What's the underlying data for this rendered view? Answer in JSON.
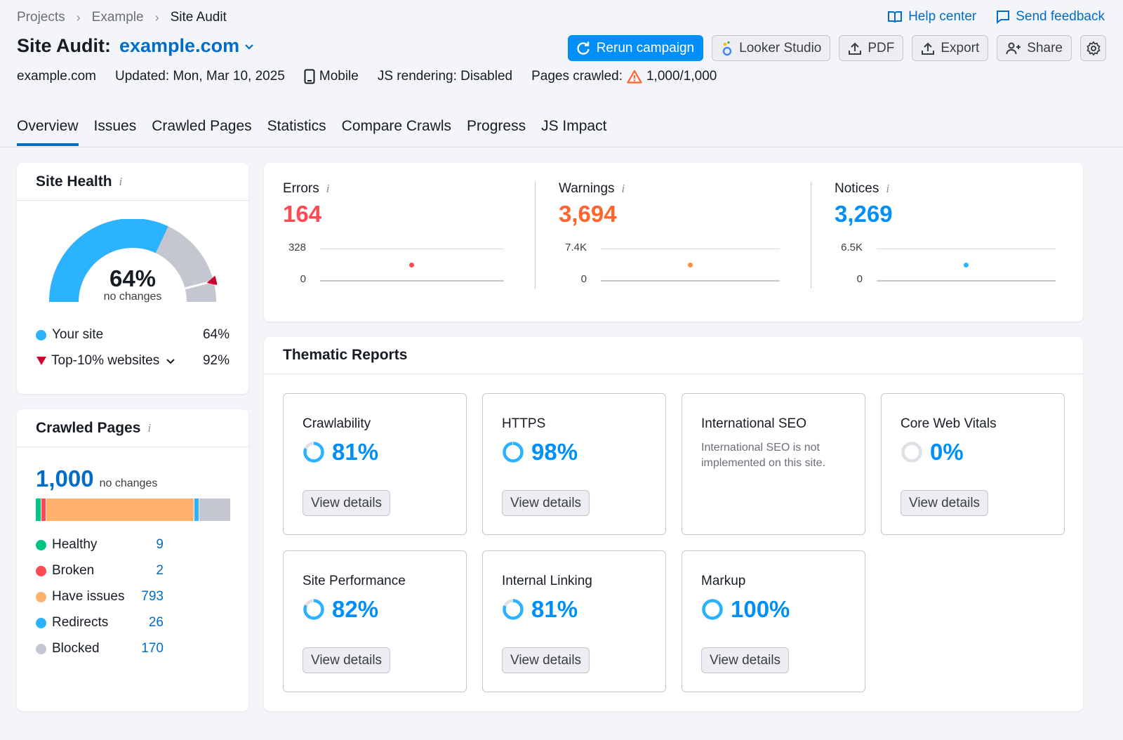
{
  "breadcrumb": {
    "items": [
      "Projects",
      "Example"
    ],
    "current": "Site Audit"
  },
  "toplinks": {
    "help": "Help center",
    "feedback": "Send feedback"
  },
  "title": {
    "label": "Site Audit:",
    "domain": "example.com"
  },
  "actions": {
    "rerun": "Rerun campaign",
    "looker": "Looker Studio",
    "pdf": "PDF",
    "export": "Export",
    "share": "Share"
  },
  "meta": {
    "domain": "example.com",
    "updated": "Updated: Mon, Mar 10, 2025",
    "device": "Mobile",
    "js": "JS rendering: Disabled",
    "pages_label": "Pages crawled:",
    "pages_value": "1,000/1,000"
  },
  "tabs": [
    "Overview",
    "Issues",
    "Crawled Pages",
    "Statistics",
    "Compare Crawls",
    "Progress",
    "JS Impact"
  ],
  "site_health": {
    "title": "Site Health",
    "value": "64%",
    "sub": "no changes",
    "fraction": 0.64,
    "top_fraction": 0.92,
    "legend": [
      {
        "label": "Your site",
        "value": "64%",
        "color": "#2bb3ff"
      },
      {
        "label": "Top-10% websites",
        "value": "92%",
        "color": "#d1002f"
      }
    ]
  },
  "crawled_pages": {
    "title": "Crawled Pages",
    "total": "1,000",
    "sub": "no changes",
    "rows": [
      {
        "label": "Healthy",
        "value": "9",
        "color": "#00c481"
      },
      {
        "label": "Broken",
        "value": "2",
        "color": "#ff4953"
      },
      {
        "label": "Have issues",
        "value": "793",
        "color": "#ffb26e"
      },
      {
        "label": "Redirects",
        "value": "26",
        "color": "#2bb3ff"
      },
      {
        "label": "Blocked",
        "value": "170",
        "color": "#c4c7cf"
      }
    ]
  },
  "issues": [
    {
      "label": "Errors",
      "value": "164",
      "color": "#ff4953",
      "ymax": "328",
      "ymin": "0"
    },
    {
      "label": "Warnings",
      "value": "3,694",
      "color": "#ff642d",
      "ymax": "7.4K",
      "ymin": "0"
    },
    {
      "label": "Notices",
      "value": "3,269",
      "color": "#008ff8",
      "ymax": "6.5K",
      "ymin": "0"
    }
  ],
  "thematic": {
    "title": "Thematic Reports",
    "view": "View details",
    "reports": [
      {
        "name": "Crawlability",
        "value": "81%",
        "fraction": 0.81
      },
      {
        "name": "HTTPS",
        "value": "98%",
        "fraction": 0.98
      },
      {
        "name": "International SEO",
        "desc": "International SEO is not implemented on this site."
      },
      {
        "name": "Core Web Vitals",
        "value": "0%",
        "fraction": 0
      },
      {
        "name": "Site Performance",
        "value": "82%",
        "fraction": 0.82
      },
      {
        "name": "Internal Linking",
        "value": "81%",
        "fraction": 0.81
      },
      {
        "name": "Markup",
        "value": "100%",
        "fraction": 1
      }
    ]
  }
}
